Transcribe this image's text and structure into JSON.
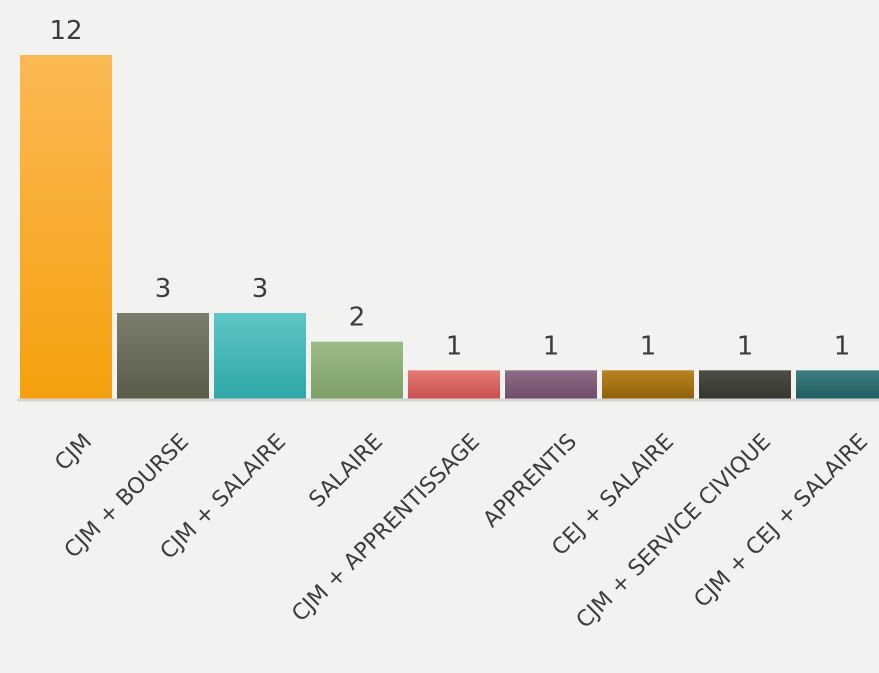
{
  "chart_data": {
    "type": "bar",
    "title": "",
    "xlabel": "",
    "ylabel": "",
    "categories": [
      "CJM",
      "CJM + BOURSE",
      "CJM + SALAIRE",
      "SALAIRE",
      "CJM + APPRENTISSAGE",
      "APPRENTIS",
      "CEJ + SALAIRE",
      "CJM + SERVICE CIVIQUE",
      "CJM + CEJ + SALAIRE"
    ],
    "values": [
      12,
      3,
      3,
      2,
      1,
      1,
      1,
      1,
      1
    ],
    "value_labels": [
      "12",
      "3",
      "3",
      "2",
      "1",
      "1",
      "1",
      "1",
      "1"
    ],
    "ylim": [
      0,
      12
    ],
    "grid": false,
    "legend": "none",
    "colors": [
      [
        "#fbb954",
        "#f5a00d"
      ],
      [
        "#7b7e6a",
        "#595c49"
      ],
      [
        "#5fc6c6",
        "#2ea7a8"
      ],
      [
        "#9cbb87",
        "#7e9f68"
      ],
      [
        "#e57a75",
        "#c9504d"
      ],
      [
        "#8f6c86",
        "#6e4d68"
      ],
      [
        "#b98320",
        "#8f6308"
      ],
      [
        "#4d4e44",
        "#34352d"
      ],
      [
        "#3f7f81",
        "#205d60"
      ]
    ],
    "axis_color": "#d4d4d2"
  }
}
